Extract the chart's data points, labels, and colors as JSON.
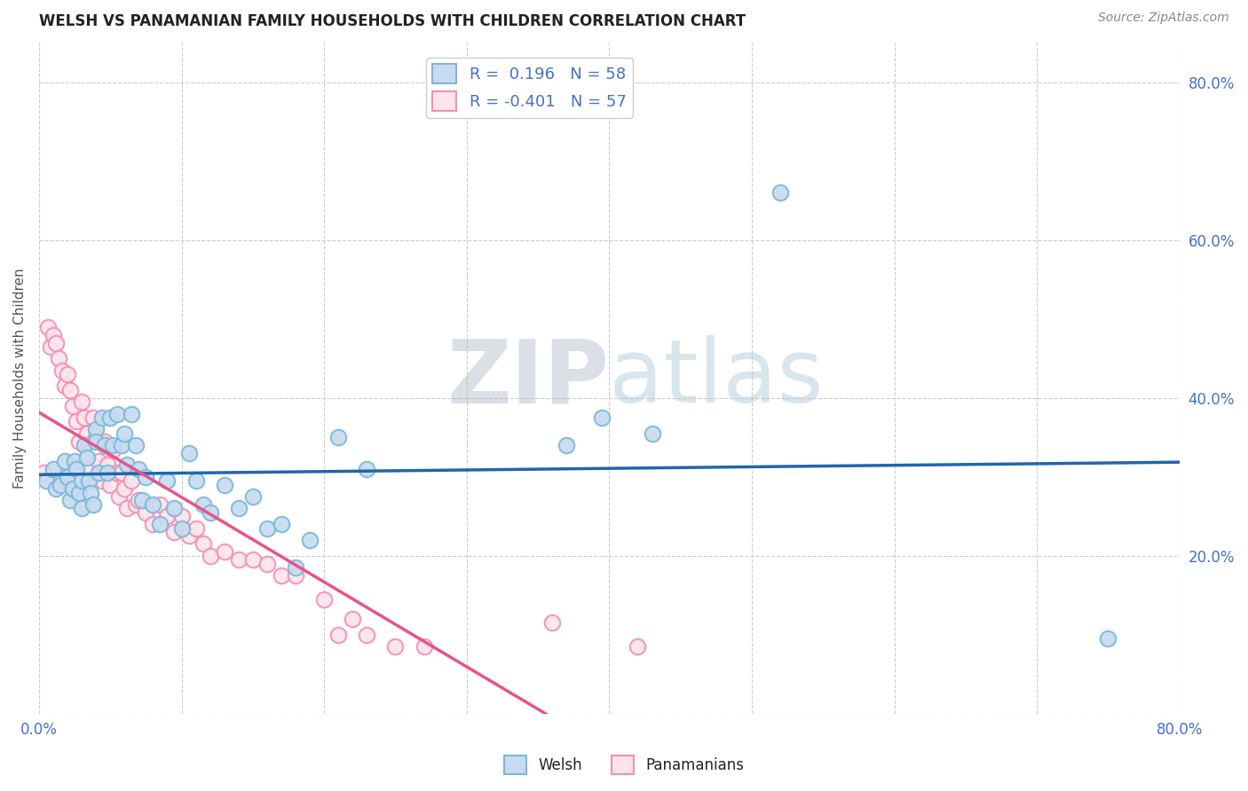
{
  "title": "WELSH VS PANAMANIAN FAMILY HOUSEHOLDS WITH CHILDREN CORRELATION CHART",
  "source": "Source: ZipAtlas.com",
  "ylabel": "Family Households with Children",
  "xlim": [
    0.0,
    0.8
  ],
  "ylim": [
    0.0,
    0.85
  ],
  "xtick_positions": [
    0.0,
    0.1,
    0.2,
    0.3,
    0.4,
    0.5,
    0.6,
    0.7,
    0.8
  ],
  "xtick_show": [
    0.0,
    0.8
  ],
  "yticks_right": [
    0.2,
    0.4,
    0.6,
    0.8
  ],
  "background_color": "#ffffff",
  "grid_color": "#cccccc",
  "watermark_zip": "ZIP",
  "watermark_atlas": "atlas",
  "welsh_color": "#7ab8d9",
  "welsh_face_color": "#c6dbef",
  "pana_color": "#f48fb1",
  "pana_face_color": "#fce4ec",
  "trend_welsh_color": "#2166ac",
  "trend_pana_color": "#e8538a",
  "welsh_R": 0.196,
  "welsh_N": 58,
  "pana_R": -0.401,
  "pana_N": 57,
  "welsh_x": [
    0.005,
    0.01,
    0.012,
    0.015,
    0.018,
    0.02,
    0.022,
    0.024,
    0.025,
    0.026,
    0.028,
    0.03,
    0.03,
    0.032,
    0.034,
    0.035,
    0.036,
    0.038,
    0.04,
    0.04,
    0.042,
    0.044,
    0.046,
    0.048,
    0.05,
    0.052,
    0.055,
    0.058,
    0.06,
    0.062,
    0.065,
    0.068,
    0.07,
    0.072,
    0.075,
    0.08,
    0.085,
    0.09,
    0.095,
    0.1,
    0.105,
    0.11,
    0.115,
    0.12,
    0.13,
    0.14,
    0.15,
    0.16,
    0.17,
    0.18,
    0.19,
    0.21,
    0.23,
    0.37,
    0.395,
    0.43,
    0.52,
    0.75
  ],
  "welsh_y": [
    0.295,
    0.31,
    0.285,
    0.29,
    0.32,
    0.3,
    0.27,
    0.285,
    0.32,
    0.31,
    0.28,
    0.295,
    0.26,
    0.34,
    0.325,
    0.295,
    0.28,
    0.265,
    0.36,
    0.345,
    0.305,
    0.375,
    0.34,
    0.305,
    0.375,
    0.34,
    0.38,
    0.34,
    0.355,
    0.315,
    0.38,
    0.34,
    0.31,
    0.27,
    0.3,
    0.265,
    0.24,
    0.295,
    0.26,
    0.235,
    0.33,
    0.295,
    0.265,
    0.255,
    0.29,
    0.26,
    0.275,
    0.235,
    0.24,
    0.185,
    0.22,
    0.35,
    0.31,
    0.34,
    0.375,
    0.355,
    0.66,
    0.095
  ],
  "pana_x": [
    0.003,
    0.006,
    0.008,
    0.01,
    0.012,
    0.014,
    0.016,
    0.018,
    0.02,
    0.022,
    0.024,
    0.026,
    0.028,
    0.03,
    0.032,
    0.034,
    0.035,
    0.038,
    0.04,
    0.042,
    0.044,
    0.046,
    0.048,
    0.05,
    0.052,
    0.054,
    0.056,
    0.058,
    0.06,
    0.062,
    0.065,
    0.068,
    0.07,
    0.075,
    0.08,
    0.085,
    0.09,
    0.095,
    0.1,
    0.105,
    0.11,
    0.115,
    0.12,
    0.13,
    0.14,
    0.15,
    0.16,
    0.17,
    0.18,
    0.2,
    0.21,
    0.22,
    0.23,
    0.25,
    0.27,
    0.36,
    0.42
  ],
  "pana_y": [
    0.305,
    0.49,
    0.465,
    0.48,
    0.47,
    0.45,
    0.435,
    0.415,
    0.43,
    0.41,
    0.39,
    0.37,
    0.345,
    0.395,
    0.375,
    0.355,
    0.31,
    0.375,
    0.35,
    0.32,
    0.295,
    0.345,
    0.315,
    0.29,
    0.335,
    0.305,
    0.275,
    0.305,
    0.285,
    0.26,
    0.295,
    0.265,
    0.27,
    0.255,
    0.24,
    0.265,
    0.25,
    0.23,
    0.25,
    0.225,
    0.235,
    0.215,
    0.2,
    0.205,
    0.195,
    0.195,
    0.19,
    0.175,
    0.175,
    0.145,
    0.1,
    0.12,
    0.1,
    0.085,
    0.085,
    0.115,
    0.085
  ],
  "trend_pana_x_end": 0.545
}
